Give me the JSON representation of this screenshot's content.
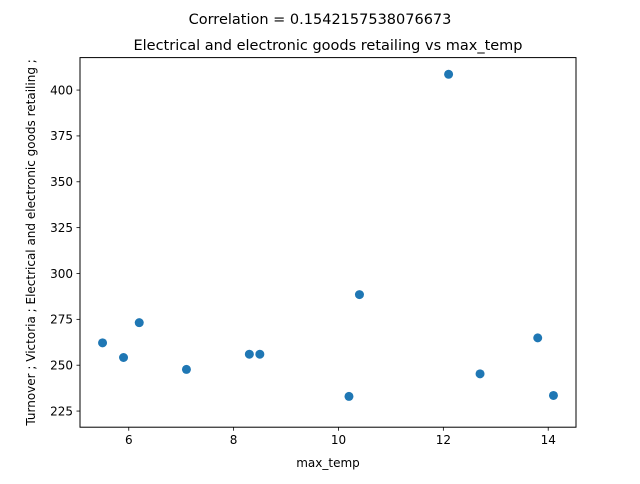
{
  "chart_data": {
    "type": "scatter",
    "suptitle": "Correlation = 0.1542157538076673",
    "title": "Electrical and electronic goods retailing vs max_temp",
    "xlabel": "max_temp",
    "ylabel": "Turnover ;  Victoria ;  Electrical and electronic goods retailing ;",
    "xlim": [
      5.07,
      14.53
    ],
    "ylim": [
      216.2,
      417.7
    ],
    "xticks": [
      6,
      8,
      10,
      12,
      14
    ],
    "yticks": [
      225,
      250,
      275,
      300,
      325,
      350,
      375,
      400
    ],
    "grid": false,
    "marker_color": "#1f77b4",
    "points": [
      {
        "x": 5.5,
        "y": 262.2
      },
      {
        "x": 5.9,
        "y": 254.2
      },
      {
        "x": 6.2,
        "y": 273.2
      },
      {
        "x": 7.1,
        "y": 247.7
      },
      {
        "x": 8.3,
        "y": 256.0
      },
      {
        "x": 8.5,
        "y": 256.0
      },
      {
        "x": 10.2,
        "y": 233.0
      },
      {
        "x": 10.4,
        "y": 288.5
      },
      {
        "x": 12.1,
        "y": 408.6
      },
      {
        "x": 12.7,
        "y": 245.3
      },
      {
        "x": 13.8,
        "y": 264.9
      },
      {
        "x": 14.1,
        "y": 233.5
      }
    ]
  }
}
